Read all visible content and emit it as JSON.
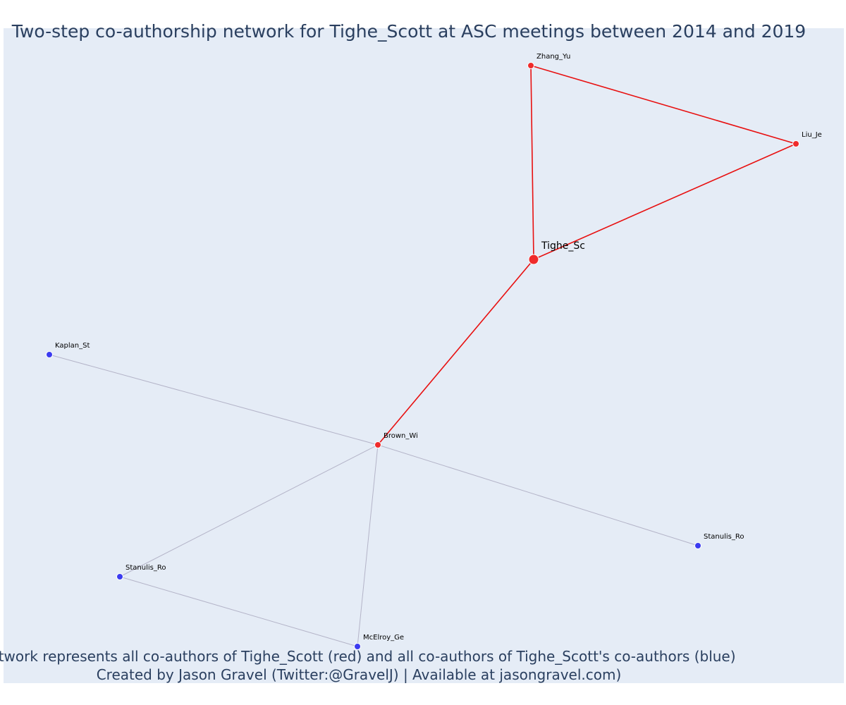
{
  "title": "Two-step co-authorship network for Tighe_Scott at ASC meetings between 2014 and 2019",
  "footer": {
    "line1": "Network represents all co-authors of Tighe_Scott (red) and all co-authors of Tighe_Scott's co-authors (blue)",
    "line2": "Created by Jason Gravel (Twitter:@GravelJ) | Available at jasongravel.com)"
  },
  "colors": {
    "background": "#e5ecf6",
    "red": "#ef2b2b",
    "blue": "#3b3bf0",
    "red_edge": "#e81010",
    "gray_edge": "#b4b4c8"
  },
  "chart_data": {
    "type": "network",
    "nodes": [
      {
        "id": "Zhang_Yu",
        "label": "Zhang_Yu",
        "group": "red"
      },
      {
        "id": "Liu_Je",
        "label": "Liu_Je",
        "group": "red"
      },
      {
        "id": "Tighe_Sc",
        "label": "Tighe_Sc",
        "group": "red",
        "focal": true
      },
      {
        "id": "Brown_Wi",
        "label": "Brown_Wi",
        "group": "red"
      },
      {
        "id": "Kaplan_St",
        "label": "Kaplan_St",
        "group": "blue"
      },
      {
        "id": "Stanulis_Ro_right",
        "label": "Stanulis_Ro",
        "group": "blue"
      },
      {
        "id": "Stanulis_Ro_left",
        "label": "Stanulis_Ro",
        "group": "blue"
      },
      {
        "id": "McElroy_Ge",
        "label": "McElroy_Ge",
        "group": "blue"
      }
    ],
    "edges": [
      {
        "source": "Zhang_Yu",
        "target": "Liu_Je",
        "type": "red"
      },
      {
        "source": "Zhang_Yu",
        "target": "Tighe_Sc",
        "type": "red"
      },
      {
        "source": "Liu_Je",
        "target": "Tighe_Sc",
        "type": "red"
      },
      {
        "source": "Tighe_Sc",
        "target": "Brown_Wi",
        "type": "red"
      },
      {
        "source": "Brown_Wi",
        "target": "Kaplan_St",
        "type": "gray"
      },
      {
        "source": "Brown_Wi",
        "target": "Stanulis_Ro_right",
        "type": "gray"
      },
      {
        "source": "Brown_Wi",
        "target": "Stanulis_Ro_left",
        "type": "gray"
      },
      {
        "source": "Brown_Wi",
        "target": "McElroy_Ge",
        "type": "gray"
      },
      {
        "source": "Stanulis_Ro_left",
        "target": "McElroy_Ge",
        "type": "gray"
      }
    ]
  }
}
